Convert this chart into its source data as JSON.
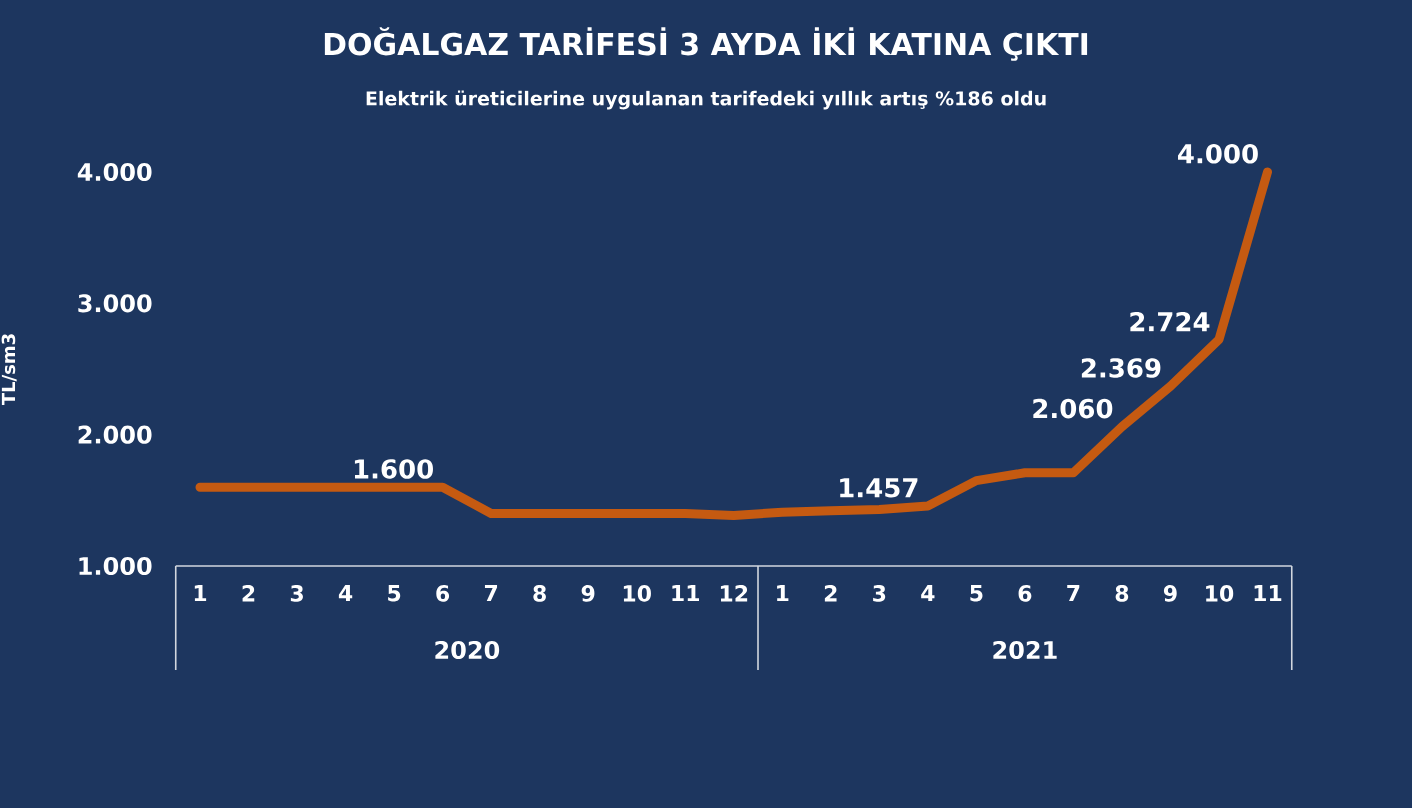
{
  "chart_data": {
    "type": "line",
    "title": "DOĞALGAZ TARİFESİ 3 AYDA İKİ KATINA ÇIKTI",
    "subtitle": "Elektrik üreticilerine uygulanan tarifedeki yıllık artış %186 oldu",
    "ylabel": "TL/sm3",
    "categories": [
      "1",
      "2",
      "3",
      "4",
      "5",
      "6",
      "7",
      "8",
      "9",
      "10",
      "11",
      "12",
      "1",
      "2",
      "3",
      "4",
      "5",
      "6",
      "7",
      "8",
      "9",
      "10",
      "11"
    ],
    "annotations": [
      "2020",
      "2021"
    ],
    "series": [
      {
        "color": "#c55a11",
        "values": [
          1600,
          1600,
          1600,
          1600,
          1600,
          1600,
          1400,
          1400,
          1400,
          1400,
          1400,
          1385,
          1410,
          1420,
          1430,
          1457,
          1650,
          1710,
          1710,
          2060,
          2369,
          2724,
          4000
        ],
        "value_labels": [
          null,
          null,
          null,
          null,
          null,
          "1.600",
          null,
          null,
          null,
          null,
          null,
          null,
          null,
          null,
          null,
          "1.457",
          null,
          null,
          null,
          "2.060",
          "2.369",
          "2.724",
          "4.000"
        ]
      }
    ],
    "ylim": [
      1000,
      4000
    ],
    "yticks": [
      {
        "value": 1000,
        "label": "1.000"
      },
      {
        "value": 2000,
        "label": "2.000"
      },
      {
        "value": 3000,
        "label": "3.000"
      },
      {
        "value": 4000,
        "label": "4.000"
      }
    ]
  }
}
